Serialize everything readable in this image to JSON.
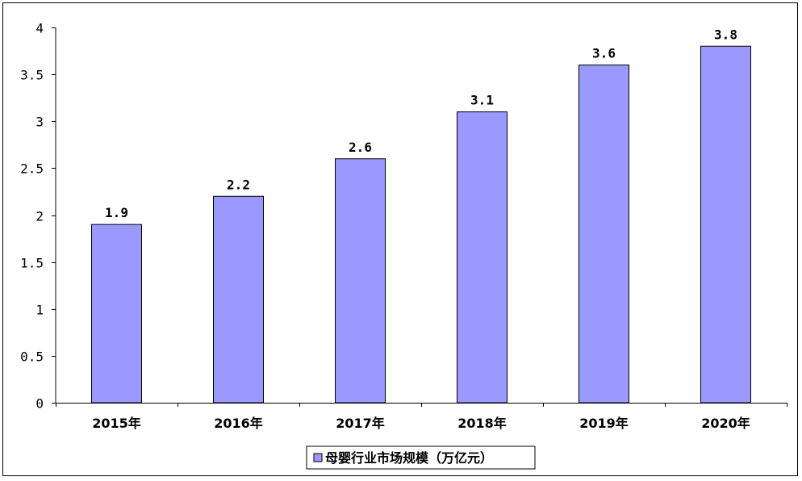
{
  "chart_data": {
    "type": "bar",
    "categories": [
      "2015年",
      "2016年",
      "2017年",
      "2018年",
      "2019年",
      "2020年"
    ],
    "series": [
      {
        "name": "母婴行业市场规模（万亿元）",
        "values": [
          1.9,
          2.2,
          2.6,
          3.1,
          3.6,
          3.8
        ],
        "value_labels": [
          "1.9",
          "2.2",
          "2.6",
          "3.1",
          "3.6",
          "3.8"
        ],
        "color": "#9999ff"
      }
    ],
    "ylim": [
      0,
      4
    ],
    "yticks": [
      0,
      0.5,
      1,
      1.5,
      2,
      2.5,
      3,
      3.5,
      4
    ],
    "ytick_labels": [
      "0",
      "0.5",
      "1",
      "1.5",
      "2",
      "2.5",
      "3",
      "3.5",
      "4"
    ],
    "grid": false,
    "legend_position": "bottom"
  }
}
